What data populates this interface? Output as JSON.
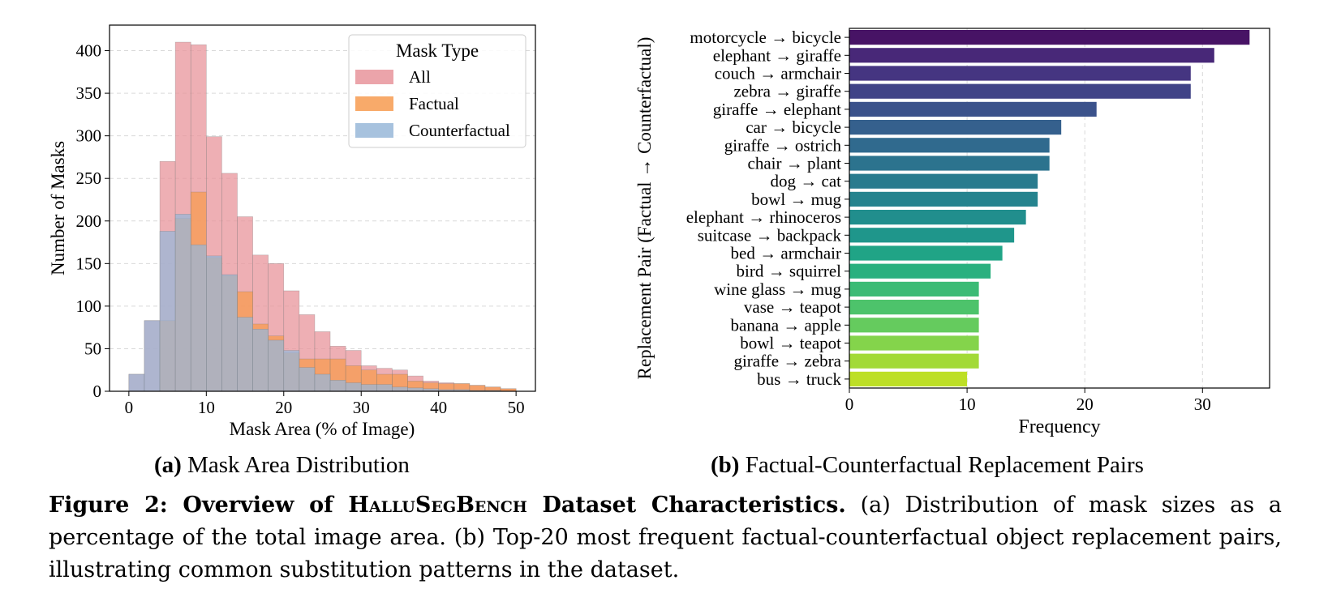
{
  "chart_data": [
    {
      "type": "bar",
      "subtype": "histogram-overlay",
      "title": "",
      "xlabel": "Mask Area (% of Image)",
      "ylabel": "Number of Masks",
      "xlim": [
        -2.5,
        52.5
      ],
      "ylim": [
        0,
        430
      ],
      "xticks": [
        0,
        10,
        20,
        30,
        40,
        50
      ],
      "yticks": [
        0,
        50,
        100,
        150,
        200,
        250,
        300,
        350,
        400
      ],
      "grid": "y-dashed",
      "legend": {
        "title": "Mask Type",
        "placement": "top-right"
      },
      "bin_edges": [
        0,
        2,
        4,
        6,
        8,
        10,
        12,
        14,
        16,
        18,
        20,
        22,
        24,
        26,
        28,
        30,
        32,
        34,
        36,
        38,
        40,
        42,
        44,
        46,
        48,
        50
      ],
      "series": [
        {
          "name": "All",
          "color": "#e8949b",
          "values": [
            20,
            83,
            270,
            410,
            407,
            299,
            256,
            205,
            160,
            150,
            118,
            90,
            70,
            53,
            48,
            30,
            27,
            25,
            18,
            12,
            10,
            9,
            7,
            5,
            3
          ]
        },
        {
          "name": "Factual",
          "color": "#f79b50",
          "values": [
            0,
            0,
            83,
            203,
            234,
            157,
            136,
            117,
            79,
            65,
            45,
            38,
            38,
            38,
            30,
            25,
            20,
            20,
            12,
            10,
            9,
            9,
            7,
            5,
            3
          ]
        },
        {
          "name": "Counterfactual",
          "color": "#98b7d8",
          "values": [
            20,
            83,
            188,
            208,
            172,
            159,
            137,
            87,
            73,
            60,
            48,
            28,
            20,
            13,
            10,
            8,
            8,
            5,
            4,
            3,
            2,
            2,
            1,
            1,
            0
          ]
        }
      ]
    },
    {
      "type": "bar",
      "orientation": "horizontal",
      "title": "",
      "xlabel": "Frequency",
      "ylabel": "Replacement Pair (Factual → Counterfactual)",
      "xlim": [
        0,
        35.7
      ],
      "xticks": [
        0,
        10,
        20,
        30
      ],
      "grid": "x-dashed",
      "colormap": "viridis",
      "categories": [
        "motorcycle → bicycle",
        "elephant → giraffe",
        "couch → armchair",
        "zebra → giraffe",
        "giraffe → elephant",
        "car → bicycle",
        "giraffe → ostrich",
        "chair → plant",
        "dog → cat",
        "bowl → mug",
        "elephant → rhinoceros",
        "suitcase → backpack",
        "bed → armchair",
        "bird → squirrel",
        "wine glass → mug",
        "vase → teapot",
        "banana → apple",
        "bowl → teapot",
        "giraffe → zebra",
        "bus → truck"
      ],
      "values": [
        34,
        31,
        29,
        29,
        21,
        18,
        17,
        17,
        16,
        16,
        15,
        14,
        13,
        12,
        11,
        11,
        11,
        11,
        11,
        10
      ],
      "colors": [
        "#471365",
        "#482878",
        "#453581",
        "#404387",
        "#3b528b",
        "#35608d",
        "#306a8e",
        "#2c738e",
        "#297b8e",
        "#25838e",
        "#218e8d",
        "#1f968b",
        "#20a486",
        "#2ab07f",
        "#3bbb75",
        "#4dc36b",
        "#65cb5e",
        "#84d44b",
        "#a2da37",
        "#bddf26"
      ]
    }
  ],
  "captions": {
    "a": {
      "label": "(a)",
      "text": "Mask Area Distribution"
    },
    "b": {
      "label": "(b)",
      "text": "Factual-Counterfactual Replacement Pairs"
    },
    "main": {
      "label_prefix": "Figure 2: Overview of",
      "bench": "HalluSegBench",
      "label_suffix": "Dataset Characteristics.",
      "text": "(a) Distribution of mask sizes as a percentage of the total image area. (b) Top-20 most frequent factual-counterfactual object replacement pairs, illustrating common substitution patterns in the dataset."
    }
  }
}
